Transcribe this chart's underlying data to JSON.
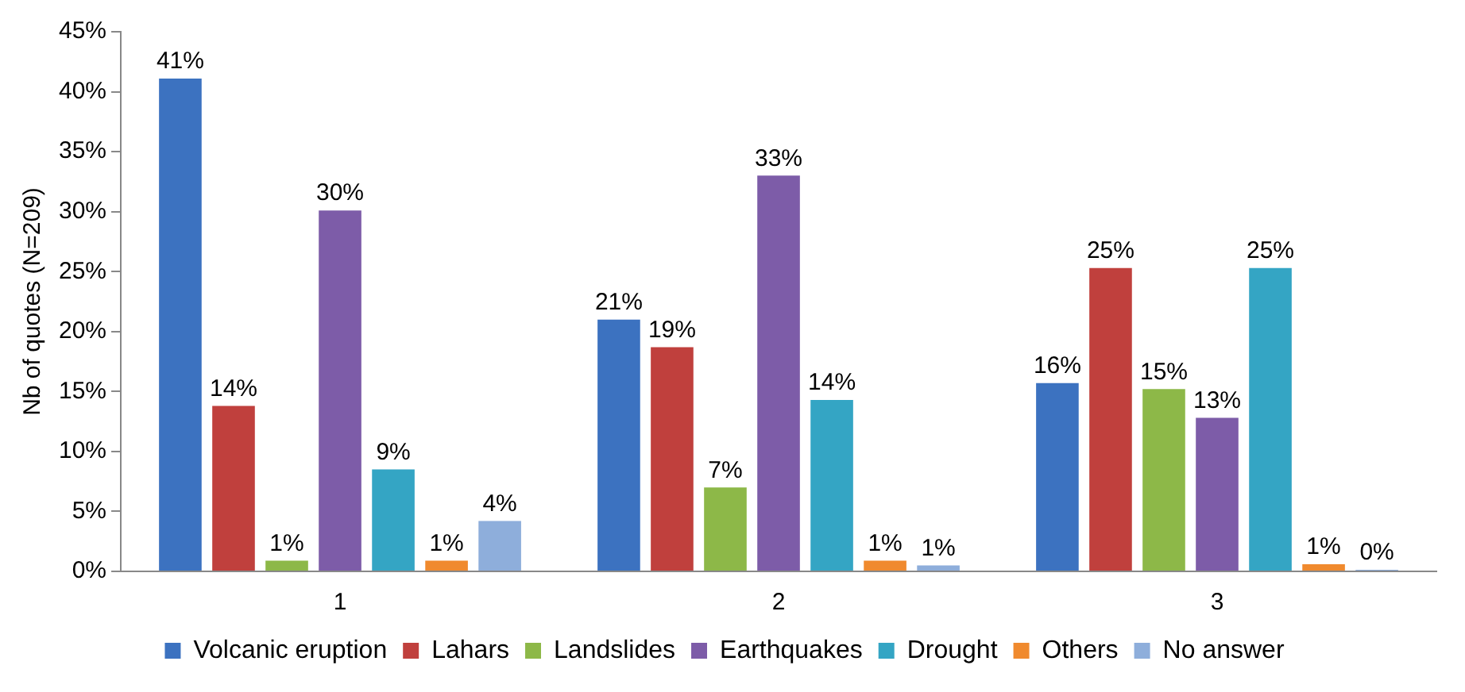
{
  "chart_data": {
    "type": "bar",
    "ylabel": "Nb of quotes (N=209)",
    "categories": [
      "1",
      "2",
      "3"
    ],
    "series": [
      {
        "name": "Volcanic eruption",
        "color": "#3c72c0",
        "values": [
          41.1,
          21,
          15.7
        ],
        "value_labels": [
          "41%",
          "21%",
          "16%"
        ]
      },
      {
        "name": "Lahars",
        "color": "#c0403d",
        "values": [
          13.8,
          18.7,
          25.3
        ],
        "value_labels": [
          "14%",
          "19%",
          "25%"
        ]
      },
      {
        "name": "Landslides",
        "color": "#8db848",
        "values": [
          0.9,
          7,
          15.2
        ],
        "value_labels": [
          "1%",
          "7%",
          "15%"
        ]
      },
      {
        "name": "Earthquakes",
        "color": "#7d5ca8",
        "values": [
          30.1,
          33,
          12.8
        ],
        "value_labels": [
          "30%",
          "33%",
          "13%"
        ]
      },
      {
        "name": "Drought",
        "color": "#34a5c4",
        "values": [
          8.5,
          14.3,
          25.3
        ],
        "value_labels": [
          "9%",
          "14%",
          "25%"
        ]
      },
      {
        "name": "Others",
        "color": "#f08a2e",
        "values": [
          0.9,
          0.9,
          0.6
        ],
        "value_labels": [
          "1%",
          "1%",
          "1%"
        ]
      },
      {
        "name": "No answer",
        "color": "#8eaedb",
        "values": [
          4.2,
          0.5,
          0
        ],
        "value_labels": [
          "4%",
          "1%",
          "0%"
        ]
      }
    ],
    "ylim": [
      0,
      45
    ],
    "yticks": [
      {
        "value": 0,
        "label": "0%"
      },
      {
        "value": 5,
        "label": "5%"
      },
      {
        "value": 10,
        "label": "10%"
      },
      {
        "value": 15,
        "label": "15%"
      },
      {
        "value": 20,
        "label": "20%"
      },
      {
        "value": 25,
        "label": "25%"
      },
      {
        "value": 30,
        "label": "30%"
      },
      {
        "value": 35,
        "label": "35%"
      },
      {
        "value": 40,
        "label": "40%"
      },
      {
        "value": 45,
        "label": "45%"
      }
    ],
    "grid": false,
    "legend": "bottom"
  }
}
